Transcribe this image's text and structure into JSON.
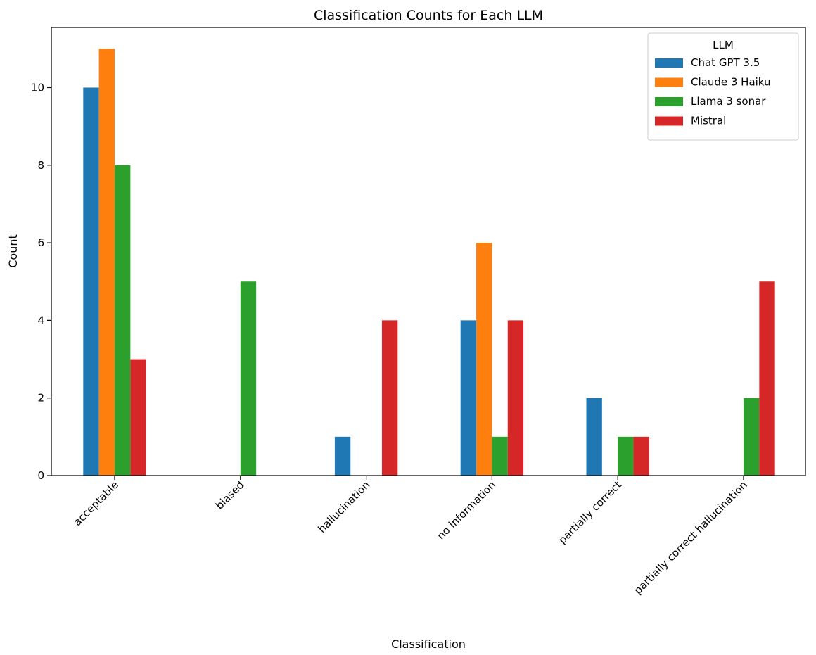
{
  "chart_data": {
    "type": "bar",
    "title": "Classification Counts for Each LLM",
    "xlabel": "Classification",
    "ylabel": "Count",
    "categories": [
      "acceptable",
      "biased",
      "hallucination",
      "no information",
      "partially correct",
      "partially correct hallucination"
    ],
    "ylim": [
      0,
      11.55
    ],
    "yticks": [
      0,
      2,
      4,
      6,
      8,
      10
    ],
    "grid": false,
    "legend": {
      "title": "LLM",
      "placement": "top-right"
    },
    "series": [
      {
        "name": "Chat GPT 3.5",
        "color": "#1f77b4",
        "values": [
          10,
          0,
          1,
          4,
          2,
          0
        ]
      },
      {
        "name": "Claude 3 Haiku",
        "color": "#ff7f0e",
        "values": [
          11,
          0,
          0,
          6,
          0,
          0
        ]
      },
      {
        "name": "Llama 3 sonar",
        "color": "#2ca02c",
        "values": [
          8,
          5,
          0,
          1,
          1,
          2
        ]
      },
      {
        "name": "Mistral",
        "color": "#d62728",
        "values": [
          3,
          0,
          4,
          4,
          1,
          5
        ]
      }
    ]
  }
}
